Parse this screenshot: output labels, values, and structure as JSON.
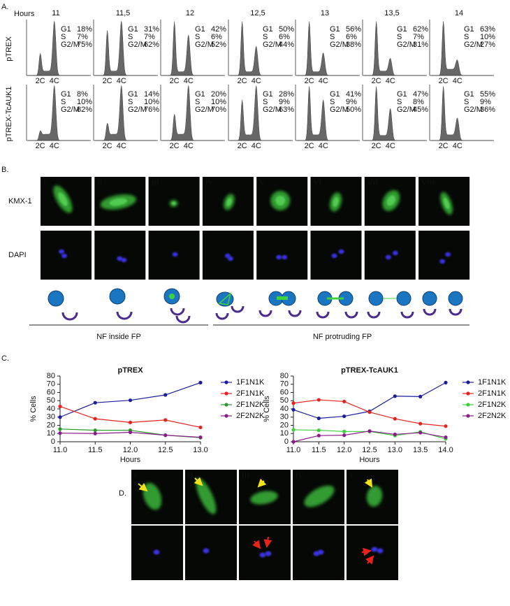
{
  "panel_a": {
    "label": "A.",
    "hours_label": "Hours",
    "hours": [
      "11",
      "11,5",
      "12",
      "12,5",
      "13",
      "13,5",
      "14"
    ],
    "phase_labels": [
      "G1",
      "S",
      "G2/M"
    ],
    "peak_labels": [
      "2C",
      "4C"
    ],
    "rows": [
      {
        "name": "pTREX",
        "values": [
          [
            "18%",
            "7%",
            "75%"
          ],
          [
            "31%",
            "7%",
            "62%"
          ],
          [
            "42%",
            "6%",
            "52%"
          ],
          [
            "50%",
            "6%",
            "44%"
          ],
          [
            "56%",
            "6%",
            "38%"
          ],
          [
            "62%",
            "7%",
            "31%"
          ],
          [
            "63%",
            "10%",
            "27%"
          ]
        ]
      },
      {
        "name": "pTREX-TcAUK1",
        "values": [
          [
            "8%",
            "10%",
            "82%"
          ],
          [
            "14%",
            "10%",
            "76%"
          ],
          [
            "20%",
            "10%",
            "70%"
          ],
          [
            "28%",
            "9%",
            "63%"
          ],
          [
            "41%",
            "9%",
            "50%"
          ],
          [
            "47%",
            "8%",
            "45%"
          ],
          [
            "55%",
            "9%",
            "36%"
          ]
        ]
      }
    ]
  },
  "panel_b": {
    "label": "B.",
    "columns": [
      "I",
      "II",
      "III",
      "IV",
      "V",
      "VI",
      "VII",
      "VIII"
    ],
    "rows": [
      "KMX-1",
      "DAPI"
    ],
    "groups": [
      "NF inside FP",
      "NF protruding FP"
    ]
  },
  "panel_c_label": "C.",
  "chart_data": [
    {
      "type": "line",
      "title": "pTREX",
      "x_label": "Hours",
      "y_label": "% Cells",
      "x": [
        11,
        11.5,
        12,
        12.5,
        13
      ],
      "xlim": [
        11,
        13
      ],
      "xticks": [
        {
          "value": 11,
          "label": "11.0"
        },
        {
          "value": 11.5,
          "label": "11.5"
        },
        {
          "value": 12,
          "label": "12.0"
        },
        {
          "value": 12.5,
          "label": "12.5"
        },
        {
          "value": 13,
          "label": "13.0"
        }
      ],
      "ylim": [
        0,
        80
      ],
      "yticks": [
        0,
        10,
        20,
        30,
        40,
        50,
        60,
        70,
        80
      ],
      "series": [
        {
          "name": "1F1N1K",
          "color": "#1c1c9c",
          "values": [
            30,
            47.5,
            50.5,
            57,
            72
          ]
        },
        {
          "name": "2F1N1K",
          "color": "#e52420",
          "values": [
            43,
            28,
            23.5,
            26.5,
            17.5
          ]
        },
        {
          "name": "2F1N2K",
          "color": "#2a9a2a",
          "values": [
            15.5,
            14,
            14,
            8,
            5
          ]
        },
        {
          "name": "2F2N2K",
          "color": "#8a1d8a",
          "values": [
            10.5,
            10,
            11.5,
            8,
            5.5
          ]
        }
      ]
    },
    {
      "type": "line",
      "title": "pTREX-TcAUK1",
      "x_label": "Hours",
      "y_label": "% Cells",
      "x": [
        11,
        11.5,
        12,
        12.5,
        13,
        13.5,
        14
      ],
      "xlim": [
        11,
        14
      ],
      "xticks": [
        {
          "value": 11,
          "label": "11.0"
        },
        {
          "value": 11.5,
          "label": "11.5"
        },
        {
          "value": 12,
          "label": "12.0"
        },
        {
          "value": 12.5,
          "label": "12.5"
        },
        {
          "value": 13,
          "label": "13.0"
        },
        {
          "value": 13.5,
          "label": "13.5"
        },
        {
          "value": 14,
          "label": "14.0"
        }
      ],
      "ylim": [
        0,
        80
      ],
      "yticks": [
        0,
        10,
        20,
        30,
        40,
        50,
        60,
        70,
        80
      ],
      "series": [
        {
          "name": "1F1N1K",
          "color": "#1c1c9c",
          "values": [
            39,
            28.5,
            31,
            37,
            55.5,
            55,
            72
          ]
        },
        {
          "name": "2F1N1K",
          "color": "#e52420",
          "values": [
            47,
            51,
            49,
            36,
            28,
            22,
            19
          ]
        },
        {
          "name": "2F1N2K",
          "color": "#3ccf3c",
          "values": [
            14.5,
            14,
            12.5,
            12.5,
            7.5,
            12,
            3.5
          ]
        },
        {
          "name": "2F2N2K",
          "color": "#8a1d8a",
          "values": [
            0,
            7.5,
            8,
            13,
            9,
            11,
            5.5
          ]
        }
      ]
    }
  ],
  "panel_d": {
    "label": "D.",
    "columns": [
      "I",
      "II",
      "III",
      "IV",
      "V"
    ]
  }
}
